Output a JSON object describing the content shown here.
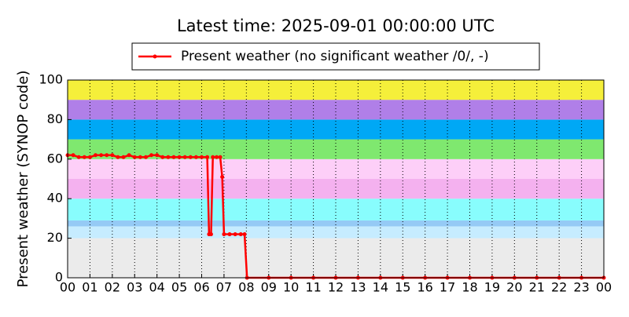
{
  "chart_data": {
    "type": "line",
    "title": "Latest time: 2025-09-01 00:00:00 UTC",
    "y_label": "Present weather (SYNOP code)",
    "xlim": [
      0,
      24
    ],
    "ylim": [
      0,
      100
    ],
    "xticks": [
      {
        "value": 0,
        "label": "00"
      },
      {
        "value": 1,
        "label": "01"
      },
      {
        "value": 2,
        "label": "02"
      },
      {
        "value": 3,
        "label": "03"
      },
      {
        "value": 4,
        "label": "04"
      },
      {
        "value": 5,
        "label": "05"
      },
      {
        "value": 6,
        "label": "06"
      },
      {
        "value": 7,
        "label": "07"
      },
      {
        "value": 8,
        "label": "08"
      },
      {
        "value": 9,
        "label": "09"
      },
      10,
      11,
      12,
      13,
      14,
      15,
      16,
      17,
      18,
      19,
      20,
      21,
      22,
      23,
      {
        "value": 24,
        "label": "00"
      }
    ],
    "yticks": [
      0,
      20,
      40,
      60,
      80,
      100
    ],
    "grid": "x",
    "bands": [
      {
        "from": 0,
        "to": 20,
        "color": "#ebebeb"
      },
      {
        "from": 20,
        "to": 26,
        "color": "#c6ecff"
      },
      {
        "from": 26,
        "to": 29,
        "color": "#95caf5"
      },
      {
        "from": 29,
        "to": 40,
        "color": "#88fdfd"
      },
      {
        "from": 40,
        "to": 50,
        "color": "#f4b1ef"
      },
      {
        "from": 50,
        "to": 60,
        "color": "#fdcff8"
      },
      {
        "from": 60,
        "to": 70,
        "color": "#7fe86f"
      },
      {
        "from": 70,
        "to": 80,
        "color": "#00a8f5"
      },
      {
        "from": 80,
        "to": 90,
        "color": "#b07fe8"
      },
      {
        "from": 90,
        "to": 100,
        "color": "#f5ef3a"
      }
    ],
    "series": [
      {
        "name": "Present weather (no significant weather /0/, -)",
        "color": "#ff0000",
        "x": [
          0,
          0.25,
          0.5,
          0.75,
          1,
          1.25,
          1.5,
          1.75,
          2,
          2.25,
          2.5,
          2.75,
          3,
          3.25,
          3.5,
          3.75,
          4,
          4.25,
          4.5,
          4.75,
          5,
          5.25,
          5.5,
          5.75,
          6,
          6.25,
          6.33,
          6.42,
          6.5,
          6.67,
          6.83,
          6.92,
          7,
          7.25,
          7.5,
          7.75,
          7.92,
          8.03,
          9,
          10,
          11,
          12,
          13,
          14,
          15,
          16,
          17,
          18,
          19,
          20,
          21,
          22,
          23,
          24
        ],
        "values": [
          62,
          62,
          61,
          61,
          61,
          62,
          62,
          62,
          62,
          61,
          61,
          62,
          61,
          61,
          61,
          62,
          62,
          61,
          61,
          61,
          61,
          61,
          61,
          61,
          61,
          61,
          22,
          22,
          61,
          61,
          61,
          51,
          22,
          22,
          22,
          22,
          22,
          0,
          0,
          0,
          0,
          0,
          0,
          0,
          0,
          0,
          0,
          0,
          0,
          0,
          0,
          0,
          0,
          0
        ]
      }
    ],
    "legend": "upper center"
  }
}
